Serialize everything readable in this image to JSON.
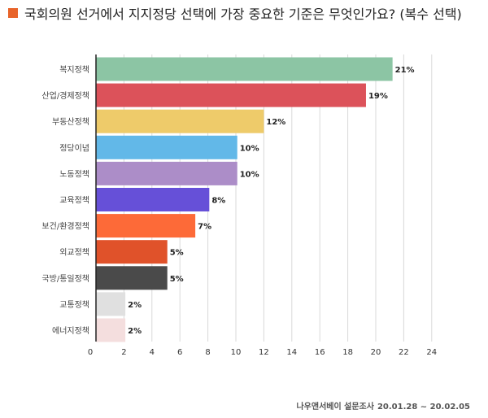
{
  "title": "국회의원 선거에서 지지정당 선택에 가장 중요한 기준은 무엇인가요? (복수 선택)",
  "title_marker_color": "#E8642A",
  "footer": {
    "source": "나우앤서베이 설문조사",
    "dates": "20.01.28 ~ 20.02.05"
  },
  "chart_data": {
    "type": "bar",
    "orientation": "horizontal",
    "title": "국회의원 선거에서 지지정당 선택에 가장 중요한 기준은 무엇인가요? (복수 선택)",
    "xlabel": "",
    "ylabel": "",
    "xlim": [
      0,
      25
    ],
    "xticks": [
      0,
      2,
      4,
      6,
      8,
      10,
      12,
      14,
      16,
      18,
      20,
      22,
      24
    ],
    "grid": true,
    "categories": [
      "복지정책",
      "산업/경제정책",
      "부동산정책",
      "정당이념",
      "노동정책",
      "교육정책",
      "보건/환경정책",
      "외교정책",
      "국방/통일정책",
      "교통정책",
      "에너지정책"
    ],
    "values": [
      21.2,
      19.3,
      12.0,
      10.1,
      10.1,
      8.1,
      7.1,
      5.1,
      5.1,
      2.1,
      2.1
    ],
    "value_labels": [
      "21%",
      "19%",
      "12%",
      "10%",
      "10%",
      "8%",
      "7%",
      "5%",
      "5%",
      "2%",
      "2%"
    ],
    "colors": [
      "#8CC5A4",
      "#DC525A",
      "#EECB6A",
      "#62B8E8",
      "#AC8DC8",
      "#6650D8",
      "#FD6A38",
      "#E0522A",
      "#4A4A4A",
      "#E0E0E0",
      "#F4DEDE"
    ]
  }
}
